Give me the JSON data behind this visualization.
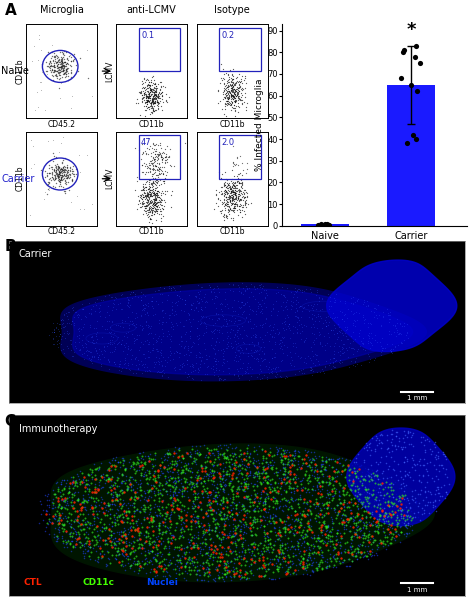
{
  "panel_A_label": "A",
  "panel_B_label": "B",
  "panel_C_label": "C",
  "bar_naive_value": 1.0,
  "bar_carrier_value": 65.0,
  "carrier_error": 18.0,
  "naive_dots": [
    0.3,
    0.5,
    0.7,
    0.4,
    0.6,
    0.5,
    0.8
  ],
  "carrier_dots": [
    83,
    81,
    80,
    78,
    75,
    68,
    65,
    62,
    42,
    40,
    38
  ],
  "ylabel_bar": "% Infected Microglia",
  "xtick_labels": [
    "Naive",
    "Carrier"
  ],
  "yticks": [
    0,
    10,
    20,
    30,
    40,
    50,
    60,
    70,
    80,
    90
  ],
  "ylim": [
    0,
    93
  ],
  "bar_color": "#1a1aff",
  "microglia_label": "Microglia",
  "antilcmv_label": "anti-LCMV",
  "isotype_label": "Isotype",
  "naive_label": "Naive",
  "carrier_label": "Carrier",
  "cd11b_xlabel": "CD11b",
  "cd45_xlabel": "CD45.2",
  "lcmv_ylabel": "LCMV",
  "cd11b_ylabel": "CD11b",
  "gate_pct_naive_anti": "0.1",
  "gate_pct_naive_iso": "0.2",
  "gate_pct_carrier_anti": "47",
  "gate_pct_carrier_iso": "2.0",
  "panel_B_label_text": "Carrier",
  "panel_C_label_text": "Immunotherapy",
  "legend_C": [
    "CTL",
    "CD11c",
    "Nuclei"
  ],
  "legend_C_colors": [
    "#ff2200",
    "#44ff00",
    "#0044ff"
  ]
}
